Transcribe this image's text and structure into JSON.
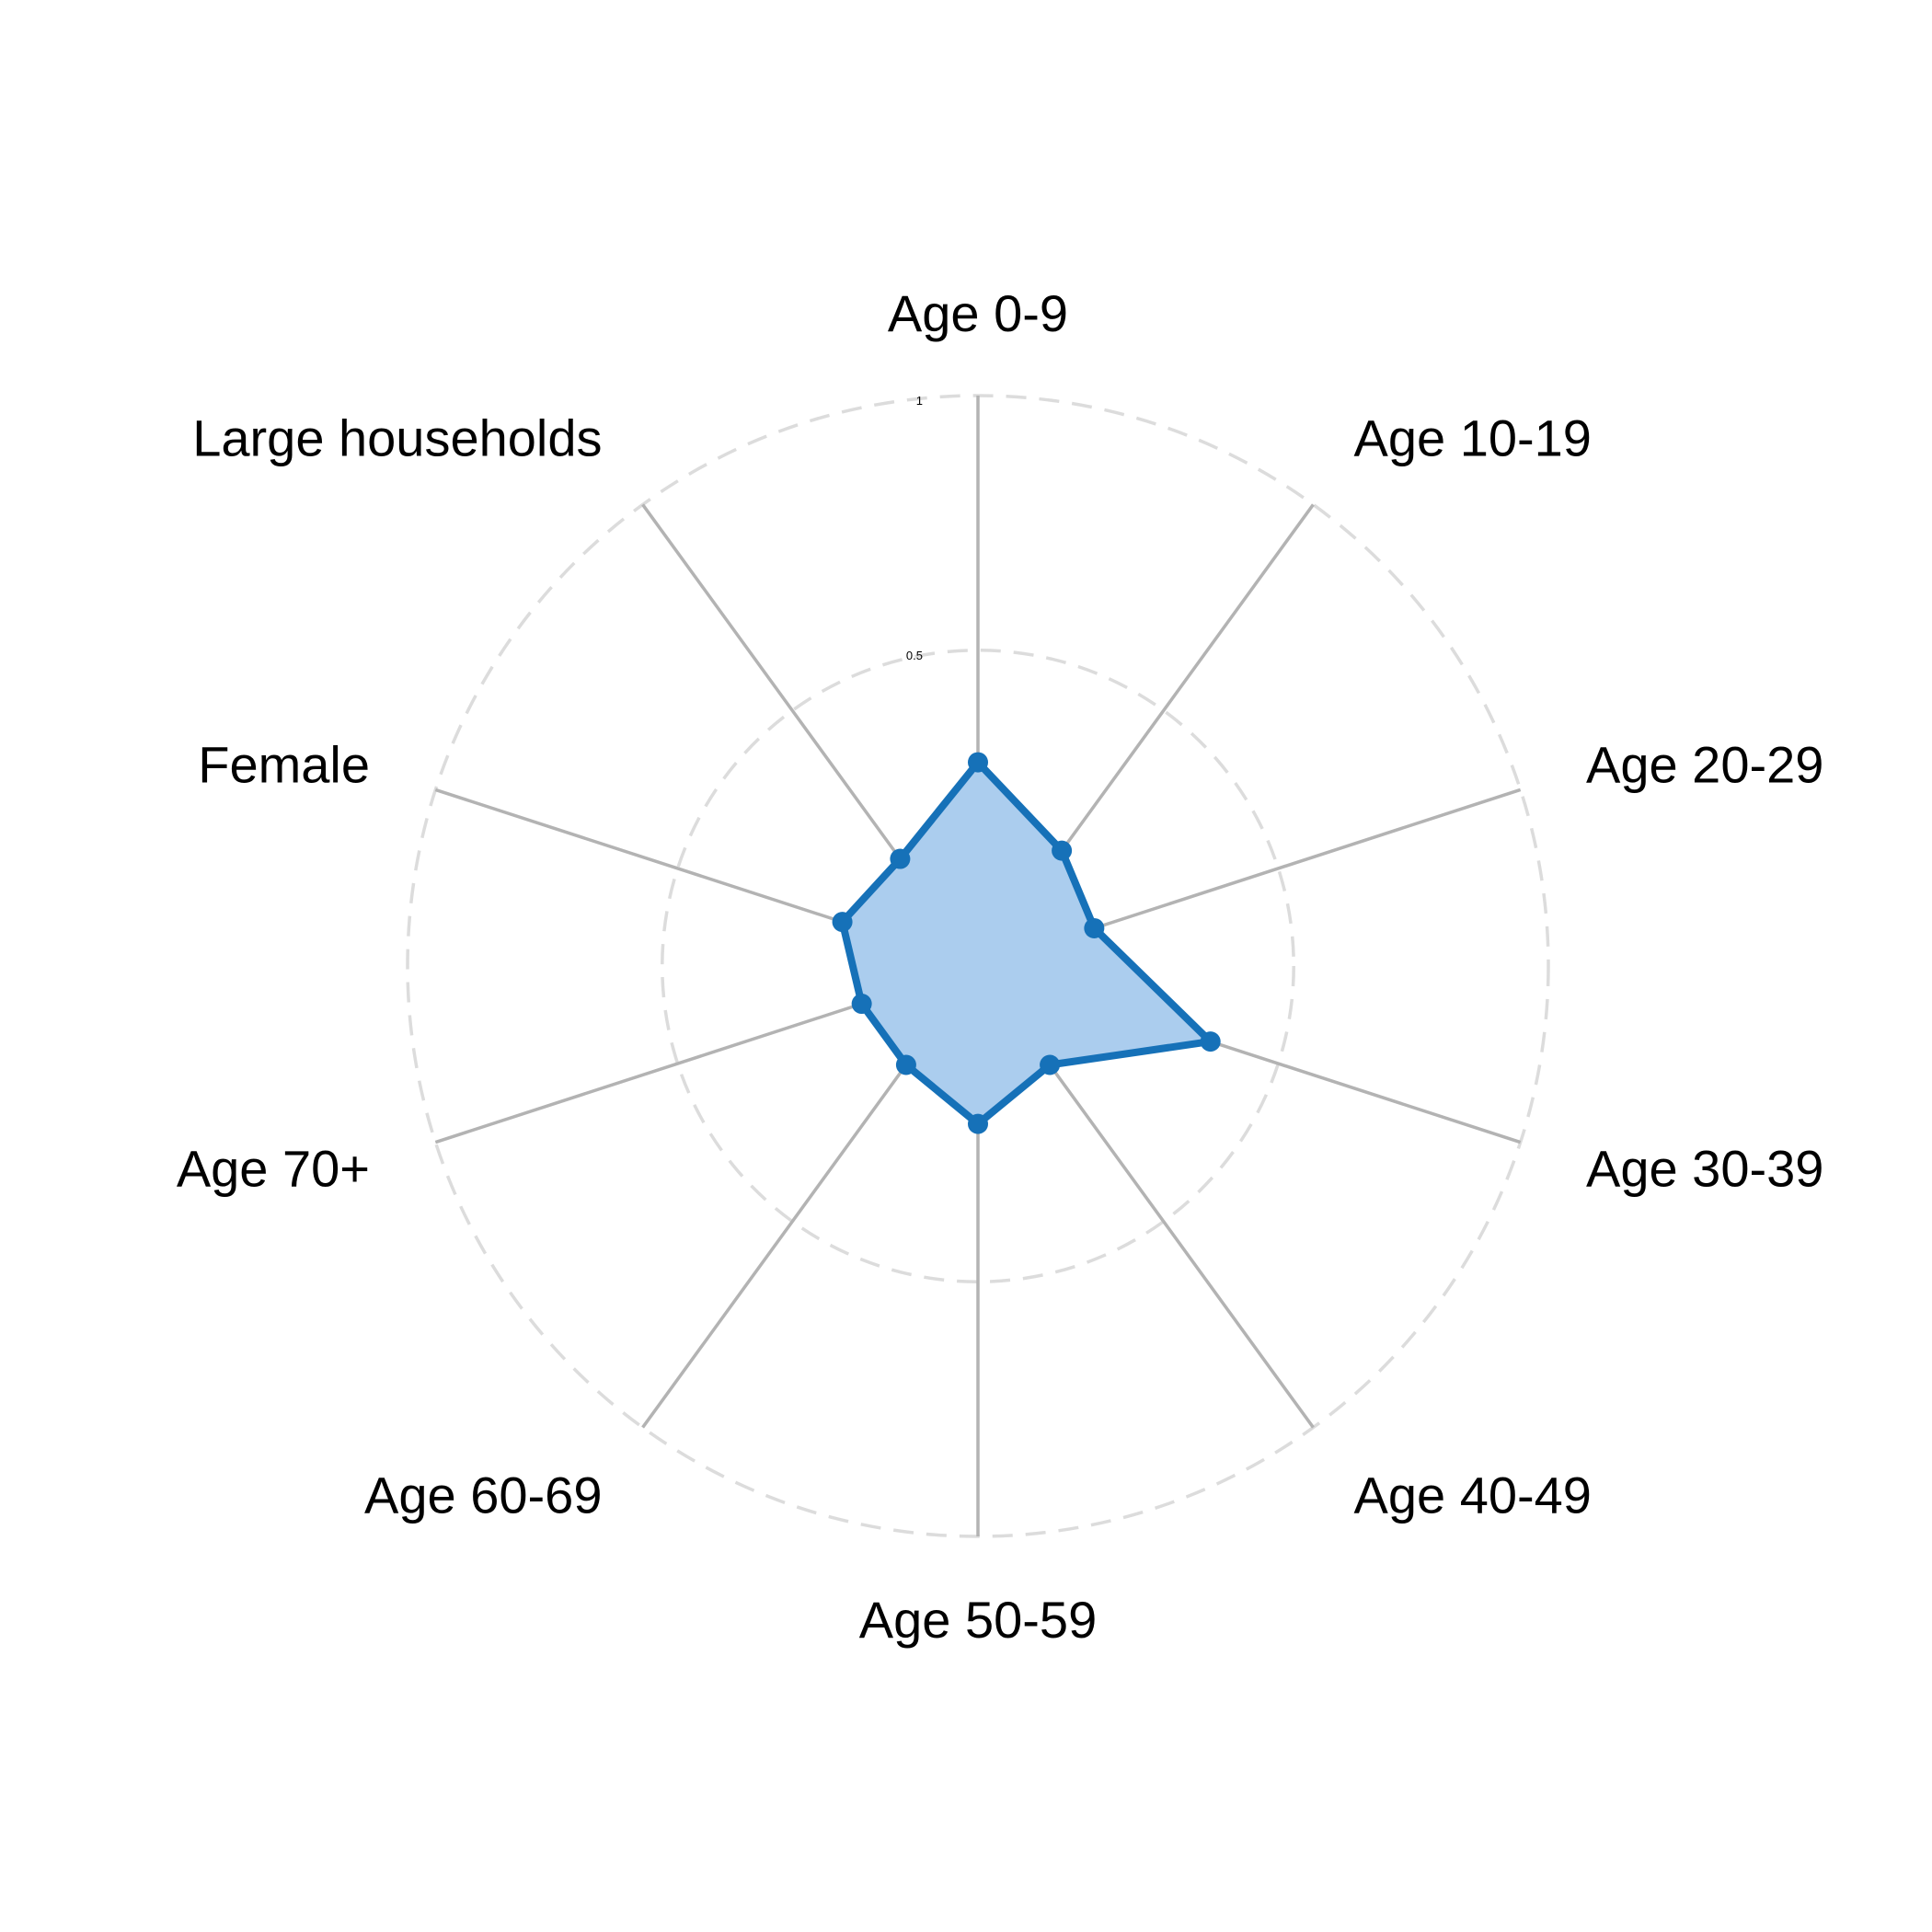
{
  "chart_data": {
    "type": "radar",
    "categories": [
      "Age 0-9",
      "Age 10-19",
      "Age 20-29",
      "Age 30-39",
      "Age 40-49",
      "Age 50-59",
      "Age 60-69",
      "Age 70+",
      "Female",
      "Large households"
    ],
    "series": [
      {
        "values": [
          0.28,
          0.16,
          0.12,
          0.36,
          0.12,
          0.19,
          0.12,
          0.12,
          0.16,
          0.14
        ]
      }
    ],
    "rlim": [
      -0.12,
      1
    ],
    "tick_values": [
      0,
      0.5,
      1
    ],
    "tick_labels": [
      "0",
      "0.5",
      "1"
    ],
    "grid": true,
    "colors": {
      "line": "#1671b8",
      "fill": "#abcdee",
      "spoke": "#b3b3b3",
      "ring": "#dcdcdc"
    }
  }
}
